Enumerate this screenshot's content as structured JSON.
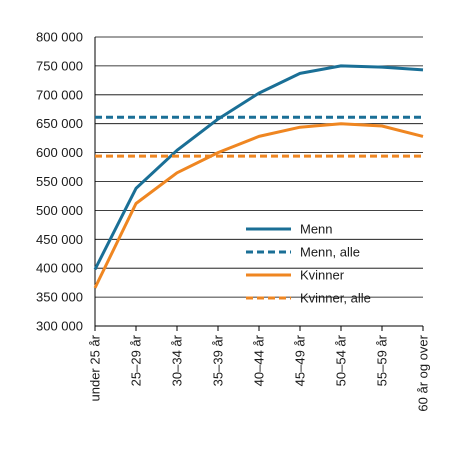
{
  "chart_data": {
    "type": "line",
    "categories": [
      "under 25 år",
      "25–29 år",
      "30–34 år",
      "35–39 år",
      "40–44 år",
      "45–49 år",
      "50–54 år",
      "55–59 år",
      "60 år og over"
    ],
    "ylim": [
      300000,
      800000
    ],
    "yticks": [
      300000,
      350000,
      400000,
      450000,
      500000,
      550000,
      600000,
      650000,
      700000,
      750000,
      800000
    ],
    "ytick_labels": [
      "300 000",
      "350 000",
      "400 000",
      "450 000",
      "500 000",
      "550 000",
      "600 000",
      "650 000",
      "700 000",
      "750 000",
      "800 000"
    ],
    "grid": true,
    "legend_position": "bottom-right",
    "series": [
      {
        "name": "Menn",
        "style": "solid",
        "color": "#1a6f96",
        "values": [
          398000,
          538000,
          604000,
          658000,
          703000,
          737000,
          750000,
          748000,
          743000
        ]
      },
      {
        "name": "Menn, alle",
        "style": "dashed",
        "color": "#1a6f96",
        "values": [
          661000,
          661000,
          661000,
          661000,
          661000,
          661000,
          661000,
          661000,
          661000
        ]
      },
      {
        "name": "Kvinner",
        "style": "solid",
        "color": "#ef8621",
        "values": [
          366000,
          512000,
          565000,
          600000,
          628000,
          644000,
          650000,
          646000,
          628000
        ]
      },
      {
        "name": "Kvinner, alle",
        "style": "dashed",
        "color": "#ef8621",
        "values": [
          594000,
          594000,
          594000,
          594000,
          594000,
          594000,
          594000,
          594000,
          594000
        ]
      }
    ]
  }
}
